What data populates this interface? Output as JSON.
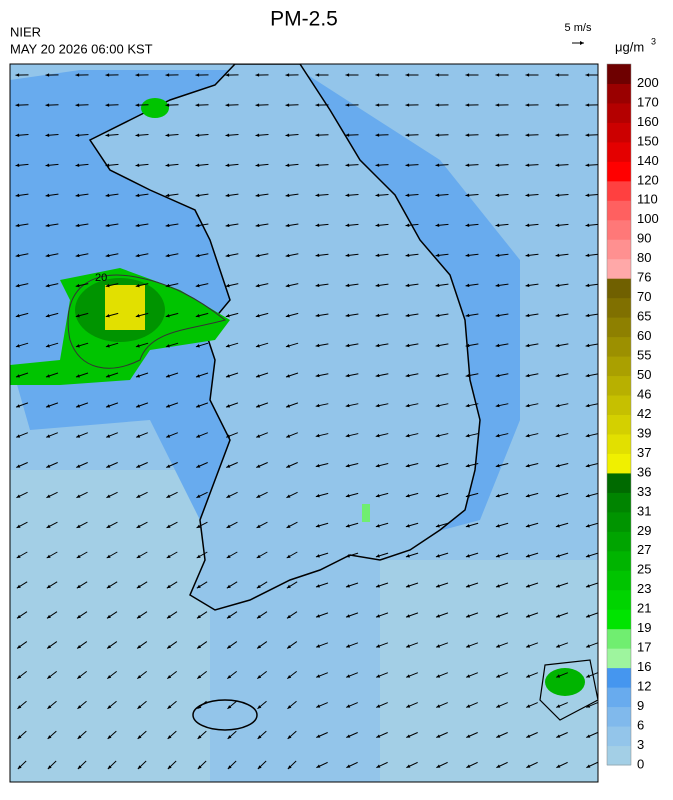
{
  "header": {
    "title": "PM-2.5",
    "agency": "NIER",
    "timestamp": "MAY 20 2026 06:00 KST",
    "wind_scale": "5 m/s"
  },
  "legend": {
    "unit": "μg/m",
    "unit_sup": "3",
    "levels": [
      0,
      3,
      6,
      9,
      12,
      16,
      17,
      19,
      21,
      23,
      25,
      27,
      29,
      31,
      33,
      36,
      37,
      39,
      42,
      46,
      50,
      55,
      60,
      65,
      70,
      76,
      80,
      90,
      100,
      110,
      120,
      140,
      150,
      160,
      170,
      200
    ],
    "colors": [
      "#a3cfe6",
      "#93c5ea",
      "#80b9ec",
      "#68abee",
      "#4596ef",
      "#9ef59e",
      "#70ee70",
      "#00e400",
      "#00d400",
      "#00c400",
      "#00b400",
      "#00a400",
      "#009400",
      "#008400",
      "#006a00",
      "#f0f000",
      "#e2e000",
      "#d4d000",
      "#c6c000",
      "#b8b000",
      "#aaa000",
      "#9c9000",
      "#8e8000",
      "#807000",
      "#706000",
      "#ffa8a8",
      "#ff9090",
      "#ff7878",
      "#ff6060",
      "#ff4040",
      "#ff0000",
      "#e40000",
      "#cc0000",
      "#b40000",
      "#9a0000",
      "#6e0000"
    ]
  },
  "map": {
    "contour_label": "20"
  }
}
